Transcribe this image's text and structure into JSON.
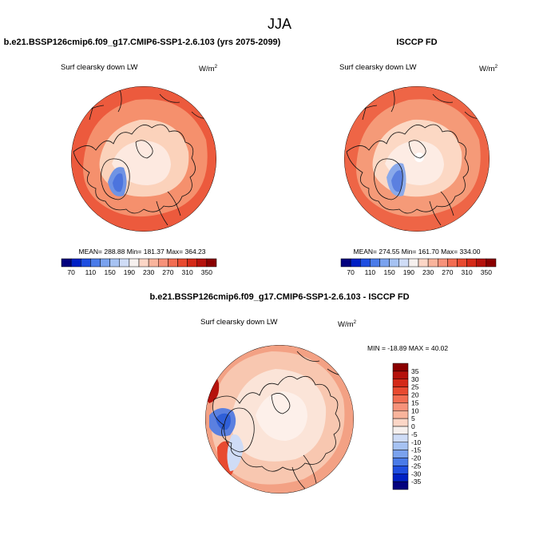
{
  "season": "JJA",
  "chart_data": [
    {
      "type": "heatmap",
      "title": "b.e21.BSSP126cmip6.f09_g17.CMIP6-SSP1-2.6.103 (yrs 2075-2099)",
      "left_label": "Surf clearsky down LW",
      "units_base": "W/m",
      "units_sup": "2",
      "projection": "north polar stereographic",
      "stats": {
        "mean": "288.88",
        "min": "181.37",
        "max": "364.23"
      },
      "colorbar": {
        "orientation": "horizontal",
        "ticks": [
          "70",
          "110",
          "150",
          "190",
          "230",
          "270",
          "310",
          "350"
        ],
        "colors": [
          "#03017e",
          "#0020c4",
          "#1f4ee0",
          "#4a7be8",
          "#7aa2ee",
          "#a6c2f2",
          "#cfdcf6",
          "#f6f0ee",
          "#fcd6c6",
          "#f9b49c",
          "#f7927a",
          "#f26d52",
          "#e84a30",
          "#d42a18",
          "#b5120c",
          "#8a0000"
        ]
      },
      "fill": {
        "outer": "#ec5a3d",
        "middle": "#f5906d",
        "inner": "#fbd2bb",
        "center": "#fde9e0"
      }
    },
    {
      "type": "heatmap",
      "title": "ISCCP FD",
      "left_label": "Surf clearsky down LW",
      "units_base": "W/m",
      "units_sup": "2",
      "projection": "north polar stereographic",
      "stats": {
        "mean": "274.55",
        "min": "161.70",
        "max": "334.00"
      },
      "colorbar": {
        "orientation": "horizontal",
        "ticks": [
          "70",
          "110",
          "150",
          "190",
          "230",
          "270",
          "310",
          "350"
        ],
        "colors": [
          "#03017e",
          "#0020c4",
          "#1f4ee0",
          "#4a7be8",
          "#7aa2ee",
          "#a6c2f2",
          "#cfdcf6",
          "#f6f0ee",
          "#fcd6c6",
          "#f9b49c",
          "#f7927a",
          "#f26d52",
          "#e84a30",
          "#d42a18",
          "#b5120c",
          "#8a0000"
        ]
      },
      "fill": {
        "outer": "#ee6546",
        "middle": "#f59a78",
        "inner": "#fcd8c4",
        "center": "#fdece4"
      }
    },
    {
      "type": "heatmap",
      "title": "b.e21.BSSP126cmip6.f09_g17.CMIP6-SSP1-2.6.103 - ISCCP FD",
      "left_label": "Surf clearsky down LW",
      "units_base": "W/m",
      "units_sup": "2",
      "projection": "north polar stereographic",
      "stats_text": "MIN = -18.89 MAX =  40.02",
      "colorbar": {
        "orientation": "vertical",
        "ticks": [
          "35",
          "30",
          "25",
          "20",
          "15",
          "10",
          "5",
          "0",
          "-5",
          "-10",
          "-15",
          "-20",
          "-25",
          "-30",
          "-35"
        ],
        "colors": [
          "#8a0000",
          "#b5120c",
          "#d42a18",
          "#e84a30",
          "#f26d52",
          "#f7927a",
          "#f9b49c",
          "#fcd6c6",
          "#f6f0ee",
          "#cfdcf6",
          "#a6c2f2",
          "#7aa2ee",
          "#4a7be8",
          "#1f4ee0",
          "#0020c4",
          "#03017e"
        ]
      },
      "fill": {
        "outer": "#f3a184",
        "middle": "#f8c7b0",
        "inner": "#fbe4d8",
        "center": "#fdf0ea"
      }
    }
  ]
}
